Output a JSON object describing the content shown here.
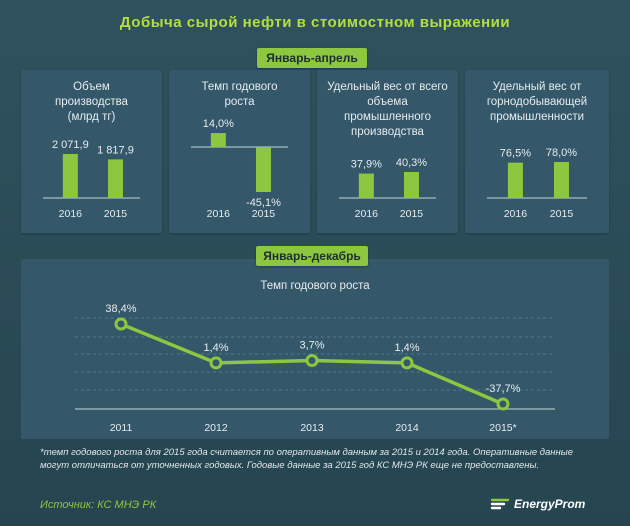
{
  "title": "Добыча сырой нефти в стоимостном выражении",
  "section1": "Январь-апрель",
  "section2": "Январь-декабрь",
  "chart_data": [
    {
      "type": "bar",
      "title": "Объем производства (млрд тг)",
      "categories": [
        "2016",
        "2015"
      ],
      "values": [
        2071.9,
        1817.9
      ],
      "labels": [
        "2 071,9",
        "1 817,9"
      ]
    },
    {
      "type": "bar",
      "title": "Темп годового роста",
      "categories": [
        "2016",
        "2015"
      ],
      "values": [
        14.0,
        -45.1
      ],
      "labels": [
        "14,0%",
        "-45,1%"
      ]
    },
    {
      "type": "bar",
      "title": "Удельный вес от всего объема промышленного производства",
      "categories": [
        "2016",
        "2015"
      ],
      "values": [
        37.9,
        40.3
      ],
      "labels": [
        "37,9%",
        "40,3%"
      ]
    },
    {
      "type": "bar",
      "title": "Удельный вес от горнодобывающей промышленности",
      "categories": [
        "2016",
        "2015"
      ],
      "values": [
        76.5,
        78.0
      ],
      "labels": [
        "76,5%",
        "78,0%"
      ]
    },
    {
      "type": "line",
      "title": "Темп годового роста",
      "x": [
        "2011",
        "2012",
        "2013",
        "2014",
        "2015*"
      ],
      "values": [
        38.4,
        1.4,
        3.7,
        1.4,
        -37.7
      ],
      "labels": [
        "38,4%",
        "1,4%",
        "3,7%",
        "1,4%",
        "-37,7%"
      ]
    }
  ],
  "panels": {
    "p1_title": "Объем производства (млрд тг)",
    "p2_title": "Темп годового роста",
    "p3_title": "Удельный вес от всего объема промышленного производства",
    "p4_title": "Удельный вес от горнодобывающей промышленности"
  },
  "line_title": "Темп годового роста",
  "note": "*темп годового роста для 2015 года считается по оперативным данным за 2015 и 2014 года. Оперативные данные могут отличаться от уточненных годовых. Годовые данные за 2015 год КС МНЭ РК еще не предоставлены.",
  "source": "Источник: КС МНЭ РК",
  "logo": "EnergyProm",
  "colors": {
    "accent": "#8dc63f",
    "title": "#b3e03c",
    "bg": "#2b4a55",
    "panel": "#34586a"
  }
}
